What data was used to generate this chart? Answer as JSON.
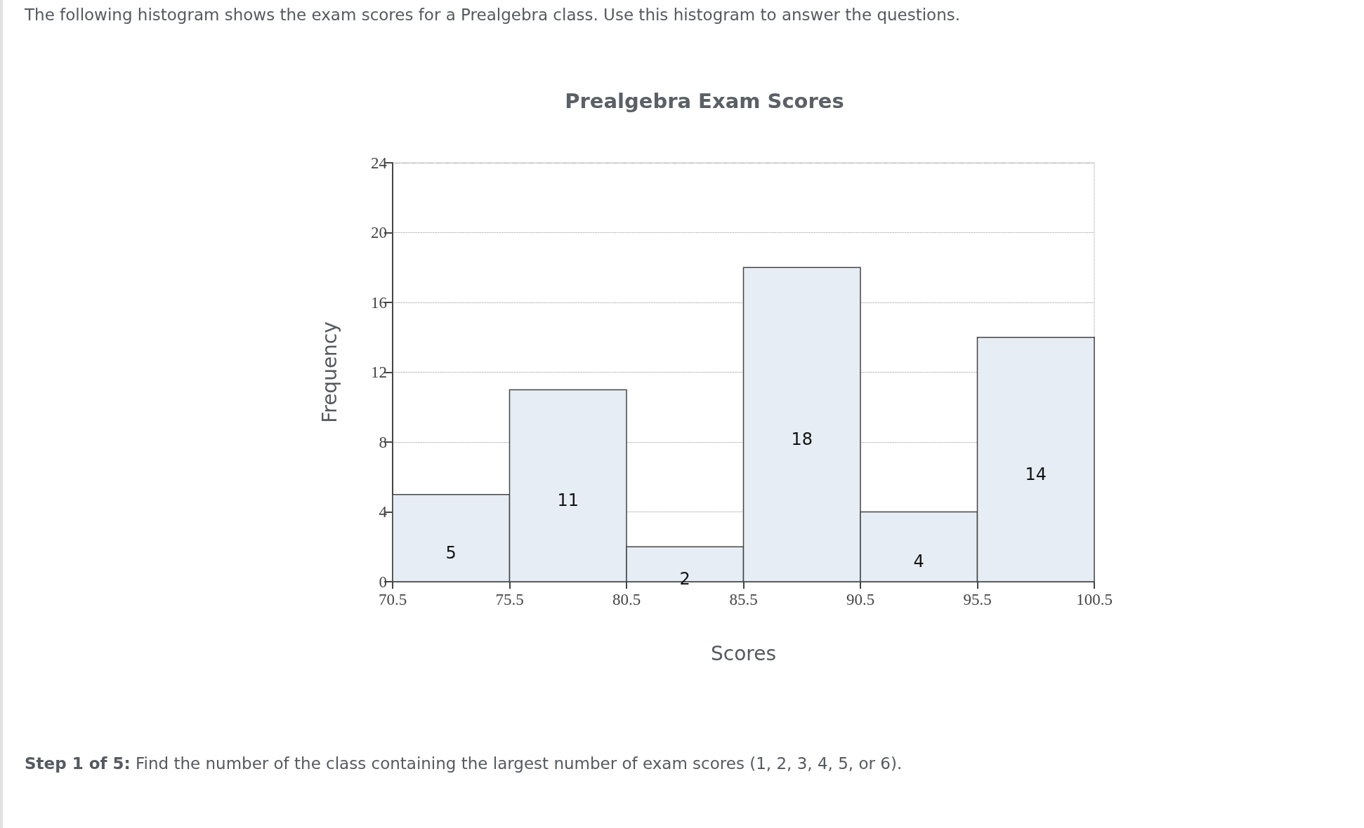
{
  "chart_data": {
    "type": "histogram",
    "title": "Prealgebra Exam Scores",
    "xlabel": "Scores",
    "ylabel": "Frequency",
    "bins": [
      70.5,
      75.5,
      80.5,
      85.5,
      90.5,
      95.5,
      100.5
    ],
    "values": [
      5,
      11,
      2,
      18,
      4,
      14
    ],
    "color": "#e6edf5",
    "xlim": [
      70.5,
      100.5
    ],
    "xticks": [
      70.5,
      75.5,
      80.5,
      85.5,
      90.5,
      95.5,
      100.5
    ],
    "ylim": [
      0,
      24
    ],
    "yticks": [
      0,
      4,
      8,
      12,
      16,
      20,
      24
    ],
    "grid": "y",
    "data_labels": true,
    "annotations": [
      "The following histogram shows the exam scores for a Prealgebra class. Use this histogram to answer the questions.",
      "Step 1 of 5: Find the number of the class containing the largest number of exam scores (1, 2, 3, 4, 5, or 6)."
    ]
  }
}
